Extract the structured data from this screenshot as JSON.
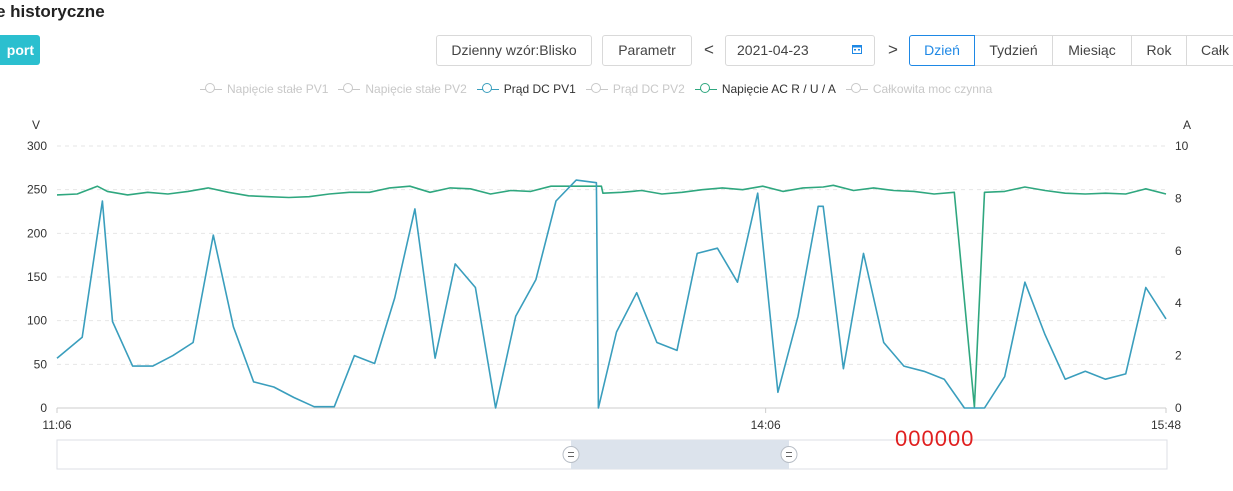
{
  "page": {
    "title": "e historyczne"
  },
  "toolbar": {
    "export_label": "port",
    "pattern_label": "Dzienny wzór:Blisko",
    "param_label": "Parametr",
    "prev_arrow": "<",
    "next_arrow": ">",
    "date_value": "2021-04-23",
    "periods": [
      "Dzień",
      "Tydzień",
      "Miesiąc",
      "Rok",
      "Całk"
    ],
    "active_period": "Dzień"
  },
  "legend": [
    {
      "label": "Napięcie stałe PV1",
      "active": false
    },
    {
      "label": "Napięcie stałe PV2",
      "active": false
    },
    {
      "label": "Prąd DC PV1",
      "active": true,
      "color": "#3a9ebd"
    },
    {
      "label": "Prąd DC PV2",
      "active": false
    },
    {
      "label": "Napięcie AC R / U / A",
      "active": true,
      "color": "#2fa77f"
    },
    {
      "label": "Całkowita moc czynna",
      "active": false
    }
  ],
  "watermark": "000000",
  "chart_data": {
    "type": "line",
    "left_axis": {
      "unit": "V",
      "min": 0,
      "max": 300,
      "ticks": [
        "300",
        "250",
        "200",
        "150",
        "100",
        "50",
        "0"
      ]
    },
    "right_axis": {
      "unit": "A",
      "min": 0,
      "max": 10,
      "ticks": [
        "10",
        "8",
        "6",
        "4",
        "2",
        "0"
      ]
    },
    "x_range": [
      "11:06",
      "15:48"
    ],
    "x_ticks": [
      "11:06",
      "14:06",
      "15:48"
    ],
    "grid": true,
    "legend_position": "top",
    "series": [
      {
        "name": "Napięcie AC R / U / A",
        "axis": "left",
        "color": "#2fa77f",
        "points": [
          [
            0,
            244
          ],
          [
            4,
            245
          ],
          [
            8,
            254
          ],
          [
            10,
            248
          ],
          [
            14,
            244
          ],
          [
            18,
            247
          ],
          [
            22,
            245
          ],
          [
            26,
            248
          ],
          [
            30,
            252
          ],
          [
            34,
            247
          ],
          [
            38,
            243
          ],
          [
            42,
            242
          ],
          [
            46,
            241
          ],
          [
            50,
            242
          ],
          [
            54,
            245
          ],
          [
            58,
            247
          ],
          [
            62,
            247
          ],
          [
            66,
            252
          ],
          [
            70,
            254
          ],
          [
            74,
            247
          ],
          [
            78,
            252
          ],
          [
            82,
            251
          ],
          [
            86,
            245
          ],
          [
            90,
            249
          ],
          [
            94,
            248
          ],
          [
            98,
            254
          ],
          [
            102,
            254
          ],
          [
            106,
            254
          ],
          [
            108,
            254
          ],
          [
            108.3,
            246
          ],
          [
            112,
            247
          ],
          [
            116,
            249
          ],
          [
            120,
            245
          ],
          [
            124,
            247
          ],
          [
            128,
            250
          ],
          [
            132,
            252
          ],
          [
            136,
            250
          ],
          [
            140,
            254
          ],
          [
            144,
            248
          ],
          [
            148,
            252
          ],
          [
            152,
            253
          ],
          [
            154,
            255
          ],
          [
            158,
            249
          ],
          [
            162,
            252
          ],
          [
            166,
            249
          ],
          [
            170,
            248
          ],
          [
            174,
            245
          ],
          [
            178,
            247
          ],
          [
            182,
            1
          ],
          [
            184,
            247
          ],
          [
            188,
            248
          ],
          [
            192,
            253
          ],
          [
            196,
            249
          ],
          [
            200,
            246
          ],
          [
            204,
            245
          ],
          [
            208,
            246
          ],
          [
            212,
            245
          ],
          [
            216,
            251
          ],
          [
            220,
            245
          ]
        ]
      },
      {
        "name": "Prąd DC PV1",
        "axis": "right",
        "color": "#3a9ebd",
        "points": [
          [
            0,
            1.9
          ],
          [
            5,
            2.7
          ],
          [
            9,
            7.9
          ],
          [
            11,
            3.3
          ],
          [
            15,
            1.6
          ],
          [
            19,
            1.6
          ],
          [
            23,
            2.0
          ],
          [
            27,
            2.5
          ],
          [
            31,
            6.6
          ],
          [
            35,
            3.1
          ],
          [
            39,
            1.0
          ],
          [
            43,
            0.8
          ],
          [
            47,
            0.4
          ],
          [
            51,
            0.05
          ],
          [
            55,
            0.05
          ],
          [
            59,
            2.0
          ],
          [
            63,
            1.7
          ],
          [
            67,
            4.2
          ],
          [
            71,
            7.6
          ],
          [
            75,
            1.9
          ],
          [
            79,
            5.5
          ],
          [
            83,
            4.6
          ],
          [
            87,
            0.0
          ],
          [
            91,
            3.5
          ],
          [
            95,
            4.9
          ],
          [
            99,
            7.9
          ],
          [
            103,
            8.7
          ],
          [
            107,
            8.6
          ],
          [
            107.4,
            0.0
          ],
          [
            111,
            2.9
          ],
          [
            115,
            4.4
          ],
          [
            119,
            2.5
          ],
          [
            123,
            2.2
          ],
          [
            127,
            5.9
          ],
          [
            131,
            6.1
          ],
          [
            135,
            4.8
          ],
          [
            139,
            8.2
          ],
          [
            143,
            0.6
          ],
          [
            147,
            3.5
          ],
          [
            151,
            7.7
          ],
          [
            152,
            7.7
          ],
          [
            156,
            1.5
          ],
          [
            160,
            5.9
          ],
          [
            164,
            2.5
          ],
          [
            168,
            1.6
          ],
          [
            172,
            1.4
          ],
          [
            176,
            1.1
          ],
          [
            180,
            0.0
          ],
          [
            184,
            0.0
          ],
          [
            188,
            1.2
          ],
          [
            192,
            4.8
          ],
          [
            196,
            2.8
          ],
          [
            200,
            1.1
          ],
          [
            204,
            1.4
          ],
          [
            208,
            1.1
          ],
          [
            212,
            1.3
          ],
          [
            216,
            4.6
          ],
          [
            220,
            3.4
          ]
        ]
      }
    ]
  }
}
